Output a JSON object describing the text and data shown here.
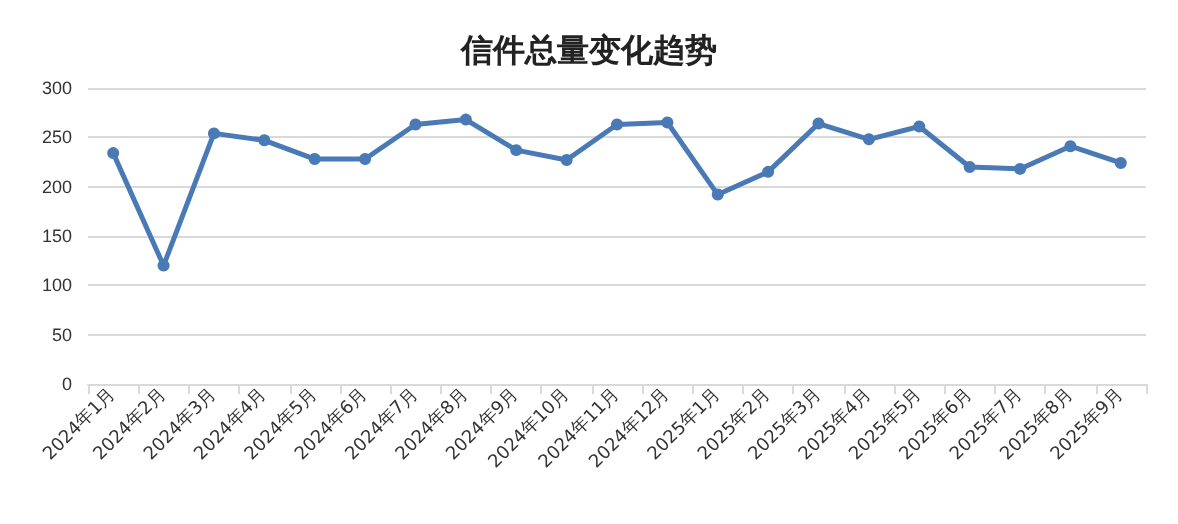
{
  "chart_data": {
    "type": "line",
    "title": "信件总量变化趋势",
    "categories": [
      "2024年1月",
      "2024年2月",
      "2024年3月",
      "2024年4月",
      "2024年5月",
      "2024年6月",
      "2024年7月",
      "2024年8月",
      "2024年9月",
      "2024年10月",
      "2024年11月",
      "2024年12月",
      "2025年1月",
      "2025年2月",
      "2025年3月",
      "2025年4月",
      "2025年5月",
      "2025年6月",
      "2025年7月",
      "2025年8月",
      "2025年9月"
    ],
    "series": [
      {
        "color": "#4a7ab5",
        "values": [
          234,
          120,
          254,
          247,
          228,
          228,
          263,
          268,
          237,
          227,
          263,
          265,
          192,
          215,
          264,
          248,
          261,
          220,
          218,
          241,
          224
        ]
      }
    ],
    "ylim": [
      0,
      300
    ],
    "yticks": [
      0,
      50,
      100,
      150,
      200,
      250,
      300
    ],
    "grid": "y",
    "marker": "circle"
  }
}
